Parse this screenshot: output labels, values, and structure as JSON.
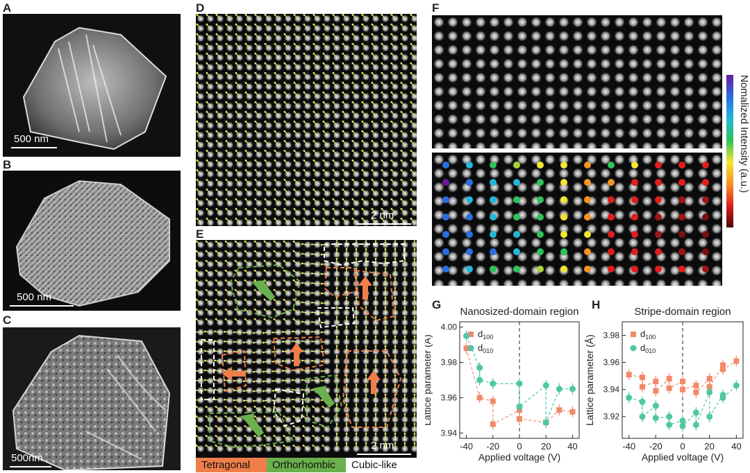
{
  "panel_labels": {
    "A": "A",
    "B": "B",
    "C": "C",
    "D": "D",
    "E": "E",
    "F": "F",
    "G": "G",
    "H": "H"
  },
  "scalebars": {
    "A": "500 nm",
    "B": "500 nm",
    "C": "500nm",
    "D": "2 nm",
    "E": "2 nm"
  },
  "phase_legend": {
    "tetragonal": "Tetragonal",
    "orthorhombic": "Orthorhombic",
    "cubic": "Cubic-like"
  },
  "colorbar_label": "Nomalized Intensity (a.u.)",
  "colors": {
    "tetragonal": "#f07e4a",
    "orthorhombic": "#6ab04c",
    "cubic": "#ffffff",
    "d100": "#f28a6a",
    "d010": "#4fc6a4",
    "arrow_yellow": "#e8e86a"
  },
  "chart_data": [
    {
      "type": "scatter",
      "title": "Nanosized-domain region",
      "xlabel": "Applied voltage (V)",
      "ylabel": "Lattice parameter (Å)",
      "xlim": [
        -45,
        45
      ],
      "ylim": [
        3.937,
        4.003
      ],
      "xticks": [
        -40,
        -20,
        0,
        20,
        40
      ],
      "yticks": [
        3.94,
        3.96,
        3.98,
        4.0
      ],
      "yticklabels": [
        "3.94",
        "3.96",
        "3.98",
        "4.00"
      ],
      "legend_position": "top-left",
      "series": [
        {
          "name": "d100",
          "label_main": "d",
          "label_sub": "100",
          "marker": "square",
          "points": [
            [
              -40,
              3.988
            ],
            [
              -30,
              3.96
            ],
            [
              -20,
              3.958
            ],
            [
              -20,
              3.945
            ],
            [
              0,
              3.953
            ],
            [
              0,
              3.948
            ],
            [
              20,
              3.946
            ],
            [
              30,
              3.953
            ],
            [
              40,
              3.952
            ]
          ]
        },
        {
          "name": "d010",
          "label_main": "d",
          "label_sub": "010",
          "marker": "circle",
          "points": [
            [
              -40,
              3.995
            ],
            [
              -30,
              3.977
            ],
            [
              -30,
              3.97
            ],
            [
              -20,
              3.968
            ],
            [
              0,
              3.968
            ],
            [
              0,
              3.955
            ],
            [
              20,
              3.967
            ],
            [
              20,
              3.946
            ],
            [
              30,
              3.965
            ],
            [
              40,
              3.965
            ]
          ]
        }
      ]
    },
    {
      "type": "scatter",
      "title": "Stripe-domain region",
      "xlabel": "Applied voltage (V)",
      "ylabel": "Lattice parameter (Å)",
      "xlim": [
        -45,
        45
      ],
      "ylim": [
        3.904,
        3.99
      ],
      "xticks": [
        -40,
        -20,
        0,
        20,
        40
      ],
      "yticks": [
        3.92,
        3.94,
        3.96,
        3.98
      ],
      "yticklabels": [
        "3.92",
        "3.94",
        "3.96",
        "3.98"
      ],
      "legend_position": "top-left",
      "series": [
        {
          "name": "d100",
          "label_main": "d",
          "label_sub": "100",
          "marker": "square",
          "points": [
            [
              -40,
              3.951
            ],
            [
              -30,
              3.949
            ],
            [
              -30,
              3.942
            ],
            [
              -20,
              3.946
            ],
            [
              -20,
              3.939
            ],
            [
              -10,
              3.948
            ],
            [
              -10,
              3.941
            ],
            [
              0,
              3.946
            ],
            [
              0,
              3.94
            ],
            [
              10,
              3.943
            ],
            [
              10,
              3.938
            ],
            [
              20,
              3.948
            ],
            [
              20,
              3.942
            ],
            [
              30,
              3.958
            ],
            [
              30,
              3.955
            ],
            [
              40,
              3.961
            ]
          ]
        },
        {
          "name": "d010",
          "label_main": "d",
          "label_sub": "010",
          "marker": "circle",
          "points": [
            [
              -40,
              3.934
            ],
            [
              -30,
              3.931
            ],
            [
              -30,
              3.92
            ],
            [
              -20,
              3.928
            ],
            [
              -20,
              3.919
            ],
            [
              -10,
              3.92
            ],
            [
              -10,
              3.914
            ],
            [
              0,
              3.917
            ],
            [
              0,
              3.913
            ],
            [
              10,
              3.923
            ],
            [
              10,
              3.914
            ],
            [
              20,
              3.938
            ],
            [
              20,
              3.92
            ],
            [
              30,
              3.936
            ],
            [
              30,
              3.934
            ],
            [
              40,
              3.943
            ]
          ]
        }
      ]
    }
  ]
}
